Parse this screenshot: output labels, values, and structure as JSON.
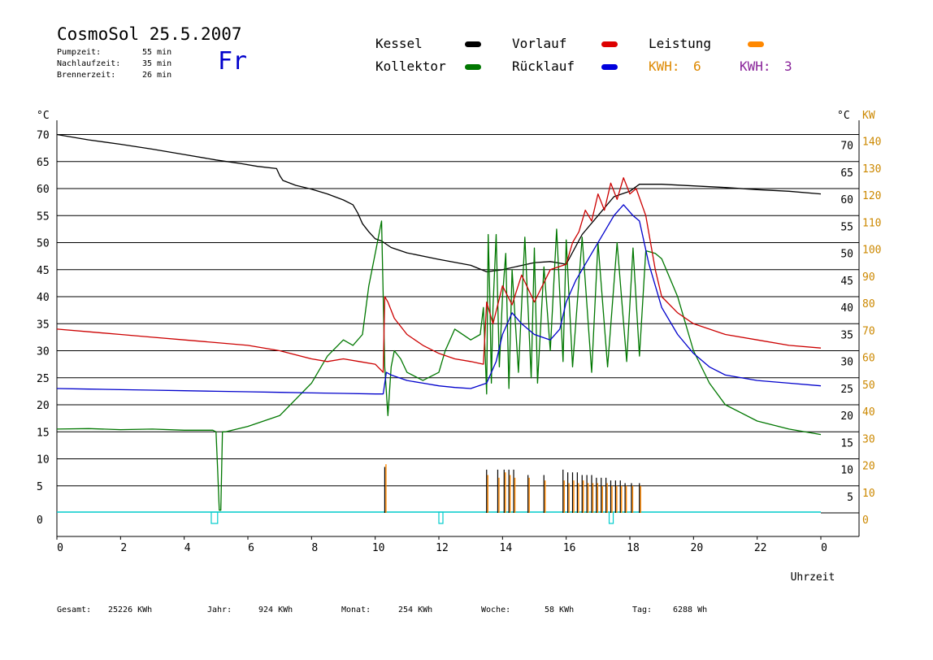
{
  "header": {
    "title": "CosmoSol 25.5.2007",
    "pumpzeit_label": "Pumpzeit:",
    "pumpzeit_value": "55 min",
    "nachlaufzeit_label": "Nachlaufzeit:",
    "nachlaufzeit_value": "35 min",
    "brennerzeit_label": "Brennerzeit:",
    "brennerzeit_value": "26 min",
    "day": "Fr"
  },
  "legend": {
    "kessel": "Kessel",
    "kollektor": "Kollektor",
    "vorlauf": "Vorlauf",
    "ruecklauf": "Rücklauf",
    "leistung": "Leistung",
    "kwh_orange_label": "KWH:",
    "kwh_orange_value": "6",
    "kwh_purple_label": "KWH:",
    "kwh_purple_value": "3"
  },
  "footer": {
    "gesamt_label": "Gesamt:",
    "gesamt_value": "25226 KWh",
    "jahr_label": "Jahr:",
    "jahr_value": "924 KWh",
    "monat_label": "Monat:",
    "monat_value": "254 KWh",
    "woche_label": "Woche:",
    "woche_value": "58 KWh",
    "tag_label": "Tag:",
    "tag_value": "6288 Wh"
  },
  "colors": {
    "kessel": "#000000",
    "kollektor": "#007700",
    "vorlauf": "#cc0000",
    "ruecklauf": "#0000cc",
    "leistung": "#ff8800",
    "kwh_orange": "#dd8800",
    "kwh_purple": "#882299",
    "pump": "#00cccc",
    "kw_axis": "#cc8800"
  },
  "chart_data": {
    "type": "line",
    "xlabel": "Uhrzeit",
    "ylabel_left": "°C",
    "ylabel_right_temp": "°C",
    "ylabel_right_power": "KW",
    "xlim": [
      0,
      24
    ],
    "ylim": [
      0,
      70
    ],
    "xticks": [
      "0",
      "2",
      "4",
      "6",
      "8",
      "10",
      "12",
      "14",
      "16",
      "18",
      "20",
      "22",
      "0"
    ],
    "yticks_left": [
      "0",
      "5",
      "10",
      "15",
      "20",
      "25",
      "30",
      "35",
      "40",
      "45",
      "50",
      "55",
      "60",
      "65",
      "70"
    ],
    "yticks_right_temp": [
      "5",
      "10",
      "15",
      "20",
      "25",
      "30",
      "35",
      "40",
      "45",
      "50",
      "55",
      "60",
      "65",
      "70"
    ],
    "yticks_right_power": [
      "0",
      "10",
      "20",
      "30",
      "40",
      "50",
      "60",
      "70",
      "80",
      "90",
      "100",
      "110",
      "120",
      "130",
      "140"
    ],
    "grid": true,
    "series": [
      {
        "name": "Kessel",
        "color": "#000000",
        "x": [
          0,
          1,
          2,
          3,
          4,
          5,
          5.8,
          6.3,
          6.9,
          7.0,
          7.1,
          7.5,
          8.0,
          8.5,
          9.0,
          9.3,
          9.45,
          9.6,
          9.8,
          10.0,
          10.2,
          10.5,
          11.0,
          12.0,
          13.0,
          13.5,
          14.0,
          15.0,
          15.5,
          16.0,
          16.5,
          17.0,
          17.5,
          18.0,
          18.3,
          19.0,
          20.0,
          21.0,
          22.0,
          23.0,
          24.0
        ],
        "y": [
          70.0,
          69.0,
          68.2,
          67.3,
          66.3,
          65.3,
          64.6,
          64.1,
          63.7,
          62.4,
          61.5,
          60.6,
          59.9,
          59.0,
          57.9,
          57.0,
          55.5,
          53.5,
          52.0,
          50.7,
          50.3,
          49.1,
          48.1,
          46.9,
          45.8,
          44.6,
          45.0,
          46.3,
          46.5,
          46.0,
          51.5,
          55.0,
          58.5,
          59.5,
          60.8,
          60.8,
          60.5,
          60.2,
          59.8,
          59.5,
          59.0
        ]
      },
      {
        "name": "Kollektor",
        "color": "#007700",
        "x": [
          0,
          1,
          2,
          3,
          4,
          4.9,
          5.0,
          5.05,
          5.1,
          5.15,
          5.2,
          5.3,
          6.0,
          7.0,
          8.0,
          8.5,
          9.0,
          9.3,
          9.6,
          9.8,
          10.0,
          10.2,
          10.3,
          10.4,
          10.5,
          10.6,
          10.8,
          11.0,
          11.5,
          12.0,
          12.2,
          12.5,
          13.0,
          13.3,
          13.4,
          13.5,
          13.55,
          13.6,
          13.65,
          13.7,
          13.8,
          13.9,
          14.0,
          14.1,
          14.2,
          14.3,
          14.5,
          14.7,
          14.9,
          15.0,
          15.1,
          15.3,
          15.5,
          15.7,
          15.9,
          16.0,
          16.2,
          16.5,
          16.8,
          17.0,
          17.3,
          17.6,
          17.9,
          18.1,
          18.3,
          18.5,
          18.8,
          19.0,
          19.5,
          20.0,
          20.5,
          21.0,
          22.0,
          23.0,
          24.0
        ],
        "y": [
          15.5,
          15.6,
          15.4,
          15.5,
          15.3,
          15.3,
          15.0,
          8.0,
          0.5,
          0.5,
          15.0,
          15.0,
          16.0,
          18.0,
          24.0,
          29.0,
          32.0,
          31.0,
          33.0,
          42.0,
          48.0,
          54.0,
          27.0,
          18.0,
          27.0,
          30.0,
          28.5,
          26.0,
          24.5,
          26.0,
          30.0,
          34.0,
          32.0,
          33.0,
          38.0,
          22.0,
          51.5,
          40.0,
          24.0,
          38.0,
          51.5,
          27.0,
          40.0,
          48.0,
          23.0,
          45.0,
          26.0,
          51.0,
          25.0,
          49.0,
          24.0,
          45.5,
          30.0,
          52.5,
          28.0,
          50.5,
          27.0,
          51.0,
          26.0,
          50.0,
          27.0,
          50.0,
          28.0,
          49.0,
          29.0,
          48.5,
          48.0,
          47.0,
          40.0,
          30.0,
          24.0,
          20.0,
          17.0,
          15.5,
          14.5
        ]
      },
      {
        "name": "Vorlauf",
        "color": "#cc0000",
        "x": [
          0,
          1,
          2,
          3,
          4,
          5,
          6,
          7,
          8,
          8.5,
          9,
          9.5,
          10,
          10.25,
          10.3,
          10.4,
          10.6,
          11.0,
          11.5,
          12.0,
          12.5,
          13.0,
          13.4,
          13.5,
          13.7,
          14.0,
          14.3,
          14.6,
          15.0,
          15.5,
          16.0,
          16.2,
          16.4,
          16.6,
          16.8,
          17.0,
          17.2,
          17.4,
          17.6,
          17.8,
          18.0,
          18.2,
          18.5,
          18.8,
          19.0,
          19.5,
          20.0,
          20.5,
          21.0,
          22.0,
          23.0,
          24.0
        ],
        "y": [
          34.0,
          33.5,
          33.0,
          32.5,
          32.0,
          31.5,
          31.0,
          30.0,
          28.5,
          28.0,
          28.5,
          28.0,
          27.5,
          26.0,
          40.0,
          39.0,
          36.0,
          33.0,
          31.0,
          29.5,
          28.5,
          28.0,
          27.5,
          39.0,
          35.0,
          42.0,
          38.5,
          44.0,
          39.0,
          45.0,
          46.0,
          50.0,
          52.0,
          56.0,
          54.0,
          59.0,
          56.0,
          61.0,
          58.0,
          62.0,
          59.0,
          60.0,
          55.0,
          45.0,
          40.0,
          37.0,
          35.0,
          34.0,
          33.0,
          32.0,
          31.0,
          30.5
        ]
      },
      {
        "name": "Rücklauf",
        "color": "#0000cc",
        "x": [
          0,
          1,
          2,
          3,
          4,
          5,
          6,
          7,
          8,
          9,
          10,
          10.25,
          10.35,
          10.5,
          11.0,
          11.5,
          12.0,
          12.5,
          13.0,
          13.5,
          13.8,
          14.0,
          14.3,
          14.6,
          15.0,
          15.5,
          15.8,
          16.0,
          16.3,
          16.6,
          16.9,
          17.2,
          17.5,
          17.8,
          18.1,
          18.3,
          18.6,
          19.0,
          19.5,
          20.0,
          20.5,
          21.0,
          22.0,
          23.0,
          24.0
        ],
        "y": [
          23.0,
          22.9,
          22.8,
          22.7,
          22.6,
          22.5,
          22.4,
          22.3,
          22.2,
          22.1,
          22.0,
          22.0,
          26.0,
          25.5,
          24.5,
          24.0,
          23.5,
          23.2,
          23.0,
          24.0,
          28.0,
          33.0,
          37.0,
          35.0,
          33.0,
          32.0,
          34.0,
          39.0,
          43.0,
          46.0,
          49.0,
          52.0,
          55.0,
          57.0,
          55.0,
          54.0,
          46.0,
          38.0,
          33.0,
          29.5,
          27.0,
          25.5,
          24.5,
          24.0,
          23.5
        ]
      }
    ],
    "leistung_power_kw": {
      "x": [
        10.3,
        13.5,
        13.85,
        14.05,
        14.2,
        14.35,
        14.8,
        15.3,
        15.9,
        16.05,
        16.2,
        16.35,
        16.5,
        16.65,
        16.8,
        16.95,
        17.1,
        17.25,
        17.4,
        17.55,
        17.7,
        17.85,
        18.05,
        18.3
      ],
      "y": [
        18,
        14,
        13,
        15,
        14,
        13,
        13,
        12,
        12,
        11,
        12,
        11,
        12,
        11,
        11,
        11,
        10,
        11,
        10,
        10,
        10,
        10,
        10,
        10
      ]
    },
    "brenner_peaks_kw": {
      "x": [
        10.3,
        13.5,
        13.85,
        14.05,
        14.2,
        14.35,
        14.8,
        15.3,
        15.9,
        16.05,
        16.2,
        16.35,
        16.5,
        16.65,
        16.8,
        16.95,
        17.1,
        17.25,
        17.4,
        17.55,
        17.7,
        17.85,
        18.05,
        18.3
      ],
      "y": [
        17,
        16,
        16,
        16,
        16,
        16,
        14,
        14,
        16,
        15,
        15,
        15,
        14,
        14,
        14,
        13,
        13,
        13,
        12,
        12,
        12,
        11,
        11,
        11
      ]
    },
    "pump_on_periods_h": [
      [
        4.85,
        5.05
      ],
      [
        12.0,
        12.1
      ],
      [
        17.35,
        17.45
      ]
    ]
  }
}
